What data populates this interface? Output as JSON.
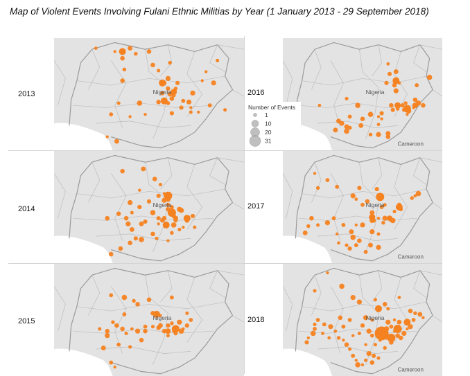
{
  "title": "Map of Violent Events Involving Fulani Ethnic Militias by Year  (1 January 2013 - 29 September 2018)",
  "legend": {
    "title": "Number of Events",
    "entries": [
      1,
      10,
      20,
      31
    ],
    "color": "#aaaaaa"
  },
  "colors": {
    "event": "#f58220",
    "land": "#e3e3e3",
    "water": "#ffffff",
    "border": "#bdbdbd",
    "country_border": "#9a9a9a"
  },
  "map_labels": {
    "country": "Nigeria",
    "neighbor": "Cameroon"
  },
  "panels": [
    {
      "year": "2013",
      "show_cameroon": false,
      "events": [
        [
          22,
          9
        ],
        [
          40,
          9
        ],
        [
          32,
          12
        ],
        [
          36,
          18
        ],
        [
          43,
          14
        ],
        [
          50,
          12
        ],
        [
          37,
          28
        ],
        [
          36,
          38
        ],
        [
          52,
          24
        ],
        [
          55,
          29
        ],
        [
          61,
          22
        ],
        [
          60,
          36
        ],
        [
          58,
          40
        ],
        [
          60,
          45
        ],
        [
          61,
          50
        ],
        [
          57,
          49
        ],
        [
          63,
          51
        ],
        [
          65,
          40
        ],
        [
          64,
          45
        ],
        [
          73,
          49
        ],
        [
          78,
          38
        ],
        [
          84,
          40
        ],
        [
          86,
          20
        ],
        [
          80,
          30
        ],
        [
          62,
          54
        ],
        [
          55,
          57
        ],
        [
          60,
          58
        ],
        [
          68,
          56
        ],
        [
          71,
          57
        ],
        [
          67,
          62
        ],
        [
          72,
          62
        ],
        [
          76,
          66
        ],
        [
          72,
          66
        ],
        [
          62,
          67
        ],
        [
          45,
          58
        ],
        [
          48,
          68
        ],
        [
          30,
          68
        ],
        [
          34,
          58
        ],
        [
          40,
          70
        ],
        [
          28,
          88
        ],
        [
          33,
          92
        ],
        [
          82,
          60
        ],
        [
          90,
          64
        ]
      ]
    },
    {
      "year": "2016",
      "show_cameroon": true,
      "events": [
        [
          66,
          23
        ],
        [
          73,
          40
        ],
        [
          71,
          30
        ],
        [
          67,
          32
        ],
        [
          70,
          42
        ],
        [
          71,
          47
        ],
        [
          65,
          40
        ],
        [
          75,
          60
        ],
        [
          84,
          42
        ],
        [
          92,
          35
        ],
        [
          83,
          55
        ],
        [
          77,
          58
        ],
        [
          68,
          60
        ],
        [
          69,
          64
        ],
        [
          72,
          63
        ],
        [
          76,
          64
        ],
        [
          82,
          62
        ],
        [
          85,
          58
        ],
        [
          88,
          60
        ],
        [
          78,
          68
        ],
        [
          79,
          65
        ],
        [
          62,
          67
        ],
        [
          60,
          70
        ],
        [
          55,
          68
        ],
        [
          47,
          60
        ],
        [
          40,
          54
        ],
        [
          42,
          70
        ],
        [
          37,
          76
        ],
        [
          33,
          82
        ],
        [
          40,
          83
        ],
        [
          42,
          80
        ],
        [
          49,
          78
        ],
        [
          50,
          72
        ],
        [
          62,
          72
        ],
        [
          60,
          77
        ],
        [
          66,
          85
        ],
        [
          60,
          86
        ],
        [
          55,
          86
        ],
        [
          66,
          88
        ],
        [
          35,
          74
        ],
        [
          40,
          79
        ],
        [
          23,
          60
        ],
        [
          10,
          65
        ]
      ]
    },
    {
      "year": "2014",
      "show_cameroon": false,
      "events": [
        [
          36,
          18
        ],
        [
          47,
          16
        ],
        [
          45,
          35
        ],
        [
          53,
          25
        ],
        [
          56,
          30
        ],
        [
          58,
          38
        ],
        [
          55,
          40
        ],
        [
          60,
          43
        ],
        [
          50,
          45
        ],
        [
          52,
          55
        ],
        [
          62,
          50
        ],
        [
          63,
          58
        ],
        [
          66,
          52
        ],
        [
          64,
          60
        ],
        [
          64,
          62
        ],
        [
          70,
          62
        ],
        [
          73,
          58
        ],
        [
          67,
          53
        ],
        [
          60,
          52
        ],
        [
          58,
          60
        ],
        [
          55,
          60
        ],
        [
          48,
          63
        ],
        [
          45,
          50
        ],
        [
          40,
          46
        ],
        [
          41,
          55
        ],
        [
          38,
          60
        ],
        [
          34,
          56
        ],
        [
          39,
          65
        ],
        [
          41,
          70
        ],
        [
          46,
          65
        ],
        [
          55,
          65
        ],
        [
          68,
          68
        ],
        [
          74,
          68
        ],
        [
          62,
          73
        ],
        [
          60,
          80
        ],
        [
          54,
          78
        ],
        [
          52,
          74
        ],
        [
          46,
          79
        ],
        [
          43,
          78
        ],
        [
          40,
          82
        ],
        [
          35,
          87
        ],
        [
          30,
          92
        ],
        [
          28,
          60
        ],
        [
          66,
          70
        ],
        [
          63,
          66
        ],
        [
          57,
          62
        ],
        [
          62,
          56
        ],
        [
          58,
          44
        ],
        [
          60,
          48
        ]
      ]
    },
    {
      "year": "2017",
      "show_cameroon": true,
      "events": [
        [
          20,
          20
        ],
        [
          28,
          26
        ],
        [
          34,
          32
        ],
        [
          22,
          33
        ],
        [
          48,
          33
        ],
        [
          59,
          34
        ],
        [
          62,
          41
        ],
        [
          46,
          43
        ],
        [
          44,
          40
        ],
        [
          50,
          48
        ],
        [
          53,
          45
        ],
        [
          62,
          50
        ],
        [
          73,
          48
        ],
        [
          81,
          42
        ],
        [
          83,
          40
        ],
        [
          56,
          55
        ],
        [
          60,
          60
        ],
        [
          64,
          60
        ],
        [
          68,
          62
        ],
        [
          70,
          54
        ],
        [
          74,
          52
        ],
        [
          63,
          64
        ],
        [
          57,
          62
        ],
        [
          50,
          66
        ],
        [
          46,
          66
        ],
        [
          38,
          66
        ],
        [
          32,
          60
        ],
        [
          28,
          64
        ],
        [
          34,
          74
        ],
        [
          35,
          82
        ],
        [
          43,
          72
        ],
        [
          44,
          77
        ],
        [
          48,
          80
        ],
        [
          46,
          84
        ],
        [
          42,
          87
        ],
        [
          40,
          84
        ],
        [
          52,
          90
        ],
        [
          55,
          84
        ],
        [
          60,
          86
        ],
        [
          56,
          62
        ],
        [
          64,
          48
        ],
        [
          69,
          62
        ],
        [
          85,
          38
        ],
        [
          18,
          60
        ],
        [
          16,
          67
        ],
        [
          22,
          66
        ],
        [
          14,
          73
        ],
        [
          56,
          72
        ],
        [
          60,
          74
        ]
      ]
    },
    {
      "year": "2015",
      "show_cameroon": false,
      "events": [
        [
          37,
          30
        ],
        [
          42,
          33
        ],
        [
          44,
          36
        ],
        [
          50,
          32
        ],
        [
          52,
          44
        ],
        [
          56,
          46
        ],
        [
          55,
          57
        ],
        [
          52,
          56
        ],
        [
          48,
          60
        ],
        [
          44,
          60
        ],
        [
          41,
          58
        ],
        [
          36,
          58
        ],
        [
          33,
          55
        ],
        [
          31,
          52
        ],
        [
          28,
          60
        ],
        [
          38,
          62
        ],
        [
          56,
          55
        ],
        [
          60,
          55
        ],
        [
          62,
          53
        ],
        [
          66,
          52
        ],
        [
          58,
          60
        ],
        [
          63,
          60
        ],
        [
          60,
          64
        ],
        [
          64,
          62
        ],
        [
          68,
          58
        ],
        [
          70,
          55
        ],
        [
          67,
          60
        ],
        [
          46,
          68
        ],
        [
          34,
          72
        ],
        [
          40,
          74
        ],
        [
          26,
          75
        ],
        [
          30,
          88
        ],
        [
          32,
          92
        ],
        [
          28,
          64
        ],
        [
          24,
          58
        ],
        [
          37,
          45
        ],
        [
          30,
          28
        ],
        [
          62,
          30
        ],
        [
          70,
          44
        ],
        [
          72,
          50
        ],
        [
          48,
          56
        ]
      ]
    },
    {
      "year": "2018",
      "show_cameroon": true,
      "events": [
        [
          20,
          24
        ],
        [
          28,
          8
        ],
        [
          37,
          20
        ],
        [
          44,
          30
        ],
        [
          48,
          34
        ],
        [
          58,
          32
        ],
        [
          66,
          40
        ],
        [
          73,
          30
        ],
        [
          80,
          42
        ],
        [
          83,
          44
        ],
        [
          86,
          45
        ],
        [
          88,
          48
        ],
        [
          70,
          50
        ],
        [
          66,
          52
        ],
        [
          50,
          55
        ],
        [
          42,
          50
        ],
        [
          36,
          48
        ],
        [
          22,
          50
        ],
        [
          20,
          58
        ],
        [
          19,
          62
        ],
        [
          16,
          66
        ],
        [
          15,
          70
        ],
        [
          25,
          62
        ],
        [
          29,
          66
        ],
        [
          33,
          60
        ],
        [
          35,
          66
        ],
        [
          38,
          68
        ],
        [
          40,
          72
        ],
        [
          42,
          76
        ],
        [
          44,
          82
        ],
        [
          46,
          86
        ],
        [
          47,
          90
        ],
        [
          50,
          90
        ],
        [
          52,
          86
        ],
        [
          56,
          88
        ],
        [
          57,
          82
        ],
        [
          60,
          84
        ],
        [
          54,
          80
        ],
        [
          52,
          72
        ],
        [
          56,
          64
        ],
        [
          60,
          60
        ],
        [
          62,
          58
        ],
        [
          65,
          58
        ],
        [
          68,
          56
        ],
        [
          70,
          60
        ],
        [
          72,
          64
        ],
        [
          74,
          66
        ],
        [
          76,
          62
        ],
        [
          78,
          58
        ],
        [
          80,
          56
        ],
        [
          82,
          50
        ],
        [
          73,
          52
        ],
        [
          65,
          66
        ],
        [
          68,
          70
        ],
        [
          61,
          68
        ],
        [
          58,
          72
        ],
        [
          64,
          75
        ],
        [
          54,
          60
        ],
        [
          48,
          62
        ],
        [
          44,
          64
        ],
        [
          38,
          56
        ],
        [
          30,
          56
        ],
        [
          26,
          54
        ],
        [
          20,
          54
        ],
        [
          52,
          48
        ],
        [
          56,
          50
        ],
        [
          60,
          40
        ],
        [
          64,
          36
        ]
      ]
    }
  ]
}
